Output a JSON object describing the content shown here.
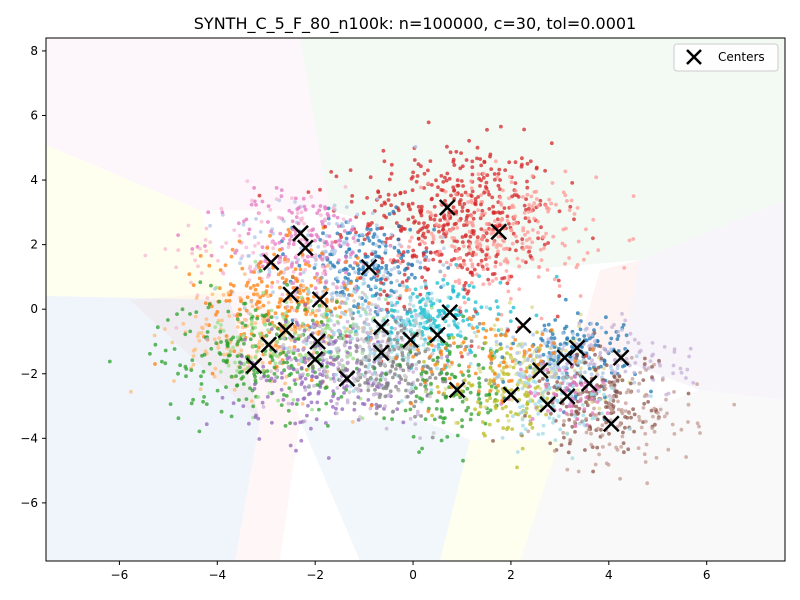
{
  "chart_data": {
    "type": "scatter",
    "title": "SYNTH_C_5_F_80_n100k: n=100000, c=30, tol=0.0001",
    "xlabel": "",
    "ylabel": "",
    "xlim": [
      -7.5,
      7.6
    ],
    "ylim": [
      -7.8,
      8.4
    ],
    "x_ticks": [
      -6,
      -4,
      -2,
      0,
      2,
      4,
      6
    ],
    "y_ticks": [
      -6,
      -4,
      -2,
      0,
      2,
      4,
      6,
      8
    ],
    "grid": false,
    "legend": {
      "position": "top-right",
      "entries": [
        "Centers"
      ]
    },
    "center_marker_color": "#000000",
    "centers": [
      {
        "x": 0.7,
        "y": 3.15
      },
      {
        "x": 1.75,
        "y": 2.4
      },
      {
        "x": -2.3,
        "y": 2.35
      },
      {
        "x": -2.2,
        "y": 1.9
      },
      {
        "x": -2.9,
        "y": 1.45
      },
      {
        "x": -0.9,
        "y": 1.3
      },
      {
        "x": -2.5,
        "y": 0.45
      },
      {
        "x": -1.9,
        "y": 0.3
      },
      {
        "x": 0.75,
        "y": -0.1
      },
      {
        "x": 2.25,
        "y": -0.5
      },
      {
        "x": -0.65,
        "y": -0.55
      },
      {
        "x": -2.6,
        "y": -0.65
      },
      {
        "x": 0.5,
        "y": -0.8
      },
      {
        "x": -0.05,
        "y": -0.95
      },
      {
        "x": -1.95,
        "y": -1.0
      },
      {
        "x": -2.95,
        "y": -1.1
      },
      {
        "x": 3.35,
        "y": -1.2
      },
      {
        "x": -0.65,
        "y": -1.35
      },
      {
        "x": 3.1,
        "y": -1.5
      },
      {
        "x": 4.25,
        "y": -1.5
      },
      {
        "x": -2.0,
        "y": -1.55
      },
      {
        "x": -3.25,
        "y": -1.75
      },
      {
        "x": 2.6,
        "y": -1.9
      },
      {
        "x": -1.35,
        "y": -2.15
      },
      {
        "x": 3.6,
        "y": -2.3
      },
      {
        "x": 0.9,
        "y": -2.5
      },
      {
        "x": 2.0,
        "y": -2.65
      },
      {
        "x": 3.15,
        "y": -2.7
      },
      {
        "x": 2.75,
        "y": -2.95
      },
      {
        "x": 4.05,
        "y": -3.55
      }
    ],
    "point_clusters": [
      {
        "color": "#d62728",
        "cx": 0.9,
        "cy": 3.0,
        "sx": 1.0,
        "sy": 1.1,
        "n": 380
      },
      {
        "color": "#ff9896",
        "cx": 1.8,
        "cy": 2.3,
        "sx": 0.9,
        "sy": 0.9,
        "n": 260
      },
      {
        "color": "#1f77b4",
        "cx": -1.0,
        "cy": 1.2,
        "sx": 0.7,
        "sy": 0.8,
        "n": 180
      },
      {
        "color": "#aec7e8",
        "cx": -1.6,
        "cy": 1.6,
        "sx": 1.0,
        "sy": 1.0,
        "n": 140
      },
      {
        "color": "#e377c2",
        "cx": -2.3,
        "cy": 2.1,
        "sx": 0.8,
        "sy": 0.8,
        "n": 140
      },
      {
        "color": "#f7b6d2",
        "cx": -2.8,
        "cy": 1.8,
        "sx": 1.0,
        "sy": 1.0,
        "n": 110
      },
      {
        "color": "#ff7f0e",
        "cx": -2.7,
        "cy": 0.2,
        "sx": 0.8,
        "sy": 0.9,
        "n": 220
      },
      {
        "color": "#ffbb78",
        "cx": -3.1,
        "cy": -0.9,
        "sx": 0.9,
        "sy": 0.9,
        "n": 160
      },
      {
        "color": "#2ca02c",
        "cx": -3.2,
        "cy": -1.4,
        "sx": 1.0,
        "sy": 0.9,
        "n": 220
      },
      {
        "color": "#98df8a",
        "cx": -2.2,
        "cy": -1.0,
        "sx": 0.9,
        "sy": 0.9,
        "n": 140
      },
      {
        "color": "#9467bd",
        "cx": -1.8,
        "cy": -2.0,
        "sx": 0.9,
        "sy": 0.9,
        "n": 200
      },
      {
        "color": "#c5b0d5",
        "cx": -1.0,
        "cy": -1.4,
        "sx": 1.0,
        "sy": 1.0,
        "n": 160
      },
      {
        "color": "#17becf",
        "cx": 0.4,
        "cy": -0.3,
        "sx": 0.7,
        "sy": 0.6,
        "n": 180
      },
      {
        "color": "#9edae5",
        "cx": -0.3,
        "cy": -0.9,
        "sx": 0.9,
        "sy": 0.8,
        "n": 150
      },
      {
        "color": "#7f7f7f",
        "cx": -0.3,
        "cy": -1.8,
        "sx": 0.8,
        "sy": 0.7,
        "n": 170
      },
      {
        "color": "#c7c7c7",
        "cx": -0.9,
        "cy": -1.1,
        "sx": 0.8,
        "sy": 0.8,
        "n": 130
      },
      {
        "color": "#2ca02c",
        "cx": 0.8,
        "cy": -2.6,
        "sx": 0.6,
        "sy": 0.8,
        "n": 110
      },
      {
        "color": "#bcbd22",
        "cx": 2.0,
        "cy": -2.5,
        "sx": 0.6,
        "sy": 0.7,
        "n": 140
      },
      {
        "color": "#dbdb8d",
        "cx": 2.6,
        "cy": -1.9,
        "sx": 0.7,
        "sy": 0.7,
        "n": 110
      },
      {
        "color": "#1f77b4",
        "cx": 3.3,
        "cy": -1.3,
        "sx": 0.6,
        "sy": 0.6,
        "n": 140
      },
      {
        "color": "#aec7e8",
        "cx": 3.0,
        "cy": -1.6,
        "sx": 0.6,
        "sy": 0.6,
        "n": 110
      },
      {
        "color": "#c5b0d5",
        "cx": 4.3,
        "cy": -1.6,
        "sx": 0.7,
        "sy": 0.6,
        "n": 90
      },
      {
        "color": "#8c564b",
        "cx": 3.8,
        "cy": -2.9,
        "sx": 0.6,
        "sy": 0.8,
        "n": 160
      },
      {
        "color": "#c49c94",
        "cx": 4.2,
        "cy": -3.4,
        "sx": 0.8,
        "sy": 0.8,
        "n": 120
      },
      {
        "color": "#9edae5",
        "cx": 2.9,
        "cy": -2.9,
        "sx": 0.6,
        "sy": 0.6,
        "n": 100
      },
      {
        "color": "#e377c2",
        "cx": 3.1,
        "cy": -2.6,
        "sx": 0.5,
        "sy": 0.5,
        "n": 60
      },
      {
        "color": "#ff7f0e",
        "cx": 1.5,
        "cy": -1.6,
        "sx": 0.9,
        "sy": 0.7,
        "n": 80
      },
      {
        "color": "#d62728",
        "cx": 0.5,
        "cy": 1.8,
        "sx": 1.3,
        "sy": 1.3,
        "n": 90
      }
    ]
  }
}
